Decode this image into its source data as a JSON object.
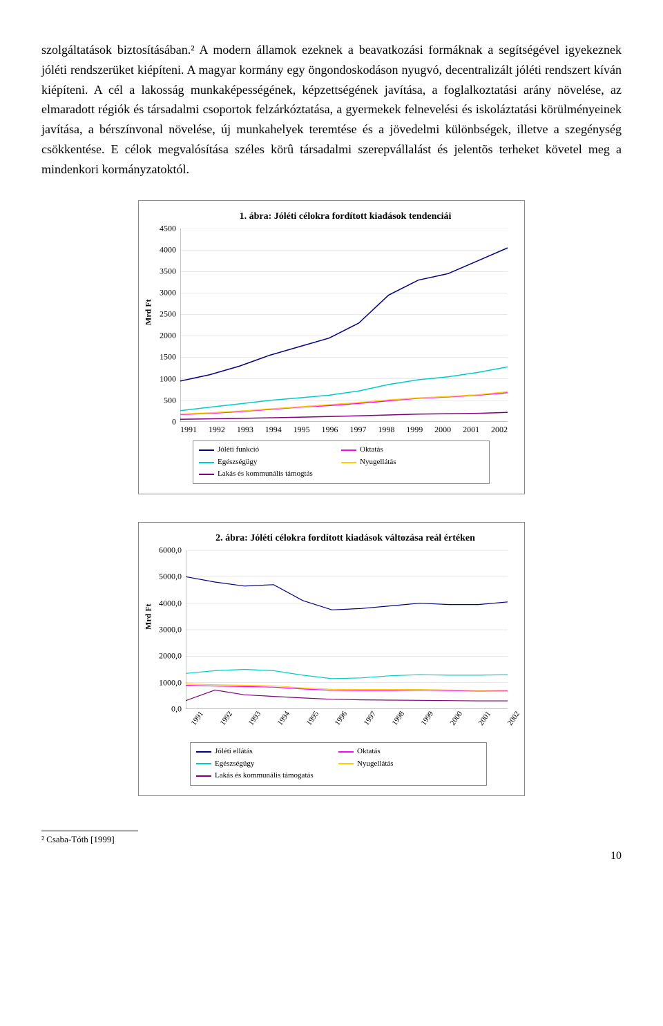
{
  "paragraph": "szolgáltatások biztosításában.² A modern államok ezeknek a beavatkozási formáknak a segítségével igyekeznek jóléti rendszerüket kiépíteni. A magyar kormány egy öngondoskodáson nyugvó, decentralizált jóléti rendszert kíván kiépíteni. A cél a lakosság munkaképességének, képzettségének javítása, a foglalkoztatási arány növelése, az elmaradott régiók és társadalmi csoportok felzárkóztatása, a gyermekek felnevelési és iskoláztatási körülményeinek javítása, a bérszínvonal növelése, új munkahelyek teremtése és a jövedelmi különbségek, illetve a szegénység csökkentése. E célok megvalósítása széles körû társadalmi szerepvállalást és jelentõs terheket követel meg a mindenkori kormányzatoktól.",
  "chart1": {
    "title": "1. ábra: Jóléti célokra fordított kiadások tendenciái",
    "ylabel": "Mrd Ft",
    "ylim": [
      0,
      4500
    ],
    "ytick_step": 500,
    "yticks": [
      0,
      500,
      1000,
      1500,
      2000,
      2500,
      3000,
      3500,
      4000,
      4500
    ],
    "years": [
      "1991",
      "1992",
      "1993",
      "1994",
      "1995",
      "1996",
      "1997",
      "1998",
      "1999",
      "2000",
      "2001",
      "2002"
    ],
    "series": [
      {
        "name": "Jóléti funkció",
        "color": "#000080",
        "values": [
          950,
          1100,
          1300,
          1550,
          1750,
          1950,
          2300,
          2950,
          3300,
          3450,
          3750,
          4050
        ]
      },
      {
        "name": "Oktatás",
        "color": "#ff00ff",
        "values": [
          170,
          200,
          240,
          290,
          340,
          380,
          430,
          490,
          550,
          580,
          620,
          680
        ]
      },
      {
        "name": "Egészségügy",
        "color": "#00cccc",
        "values": [
          260,
          340,
          420,
          500,
          560,
          620,
          720,
          870,
          980,
          1050,
          1150,
          1280
        ]
      },
      {
        "name": "Nyugellátás",
        "color": "#ffcc00",
        "values": [
          180,
          210,
          250,
          300,
          350,
          400,
          450,
          510,
          560,
          590,
          630,
          700
        ]
      },
      {
        "name": "Lakás és kommunális támogtás",
        "color": "#800080",
        "values": [
          60,
          70,
          80,
          95,
          110,
          125,
          140,
          160,
          180,
          190,
          200,
          220
        ]
      }
    ],
    "legend_order": [
      [
        "Jóléti funkció",
        "Oktatás"
      ],
      [
        "Egészségügy",
        "Nyugellátás"
      ],
      [
        "Lakás és kommunális támogtás",
        ""
      ]
    ],
    "background_color": "#ffffff",
    "grid_color": "#d0d0d0",
    "line_width": 1.5
  },
  "chart2": {
    "title": "2. ábra: Jóléti célokra fordított kiadások változása reál értéken",
    "ylabel": "Mrd Ft",
    "ylim": [
      0,
      6000
    ],
    "ytick_step": 1000,
    "yticks": [
      "0,0",
      "1000,0",
      "2000,0",
      "3000,0",
      "4000,0",
      "5000,0",
      "6000,0"
    ],
    "ytick_values": [
      0,
      1000,
      2000,
      3000,
      4000,
      5000,
      6000
    ],
    "years": [
      "1991",
      "1992",
      "1993",
      "1994",
      "1995",
      "1996",
      "1997",
      "1998",
      "1999",
      "2000",
      "2001",
      "2002"
    ],
    "series": [
      {
        "name": "Jóléti ellátás",
        "color": "#000080",
        "values": [
          5000,
          4800,
          4650,
          4700,
          4100,
          3750,
          3800,
          3900,
          4000,
          3950,
          3950,
          4050
        ]
      },
      {
        "name": "Oktatás",
        "color": "#ff00ff",
        "values": [
          900,
          870,
          850,
          830,
          760,
          710,
          700,
          700,
          720,
          700,
          680,
          690
        ]
      },
      {
        "name": "Egészségügy",
        "color": "#00cccc",
        "values": [
          1350,
          1450,
          1500,
          1450,
          1280,
          1150,
          1180,
          1260,
          1300,
          1280,
          1280,
          1300
        ]
      },
      {
        "name": "Nyugellátás",
        "color": "#ffcc00",
        "values": [
          950,
          920,
          900,
          880,
          800,
          750,
          740,
          740,
          740,
          720,
          700,
          710
        ]
      },
      {
        "name": "Lakás és kommunális támogatás",
        "color": "#800080",
        "values": [
          320,
          720,
          540,
          480,
          420,
          370,
          350,
          340,
          330,
          320,
          310,
          310
        ]
      }
    ],
    "legend_order": [
      [
        "Jóléti ellátás",
        "Oktatás"
      ],
      [
        "Egészségügy",
        "Nyugellátás"
      ],
      [
        "Lakás és kommunális támogatás",
        ""
      ]
    ],
    "background_color": "#ffffff",
    "grid_color": "#d0d0d0",
    "line_width": 1.2
  },
  "footnote": "² Csaba-Tóth [1999]",
  "page_number": "10"
}
